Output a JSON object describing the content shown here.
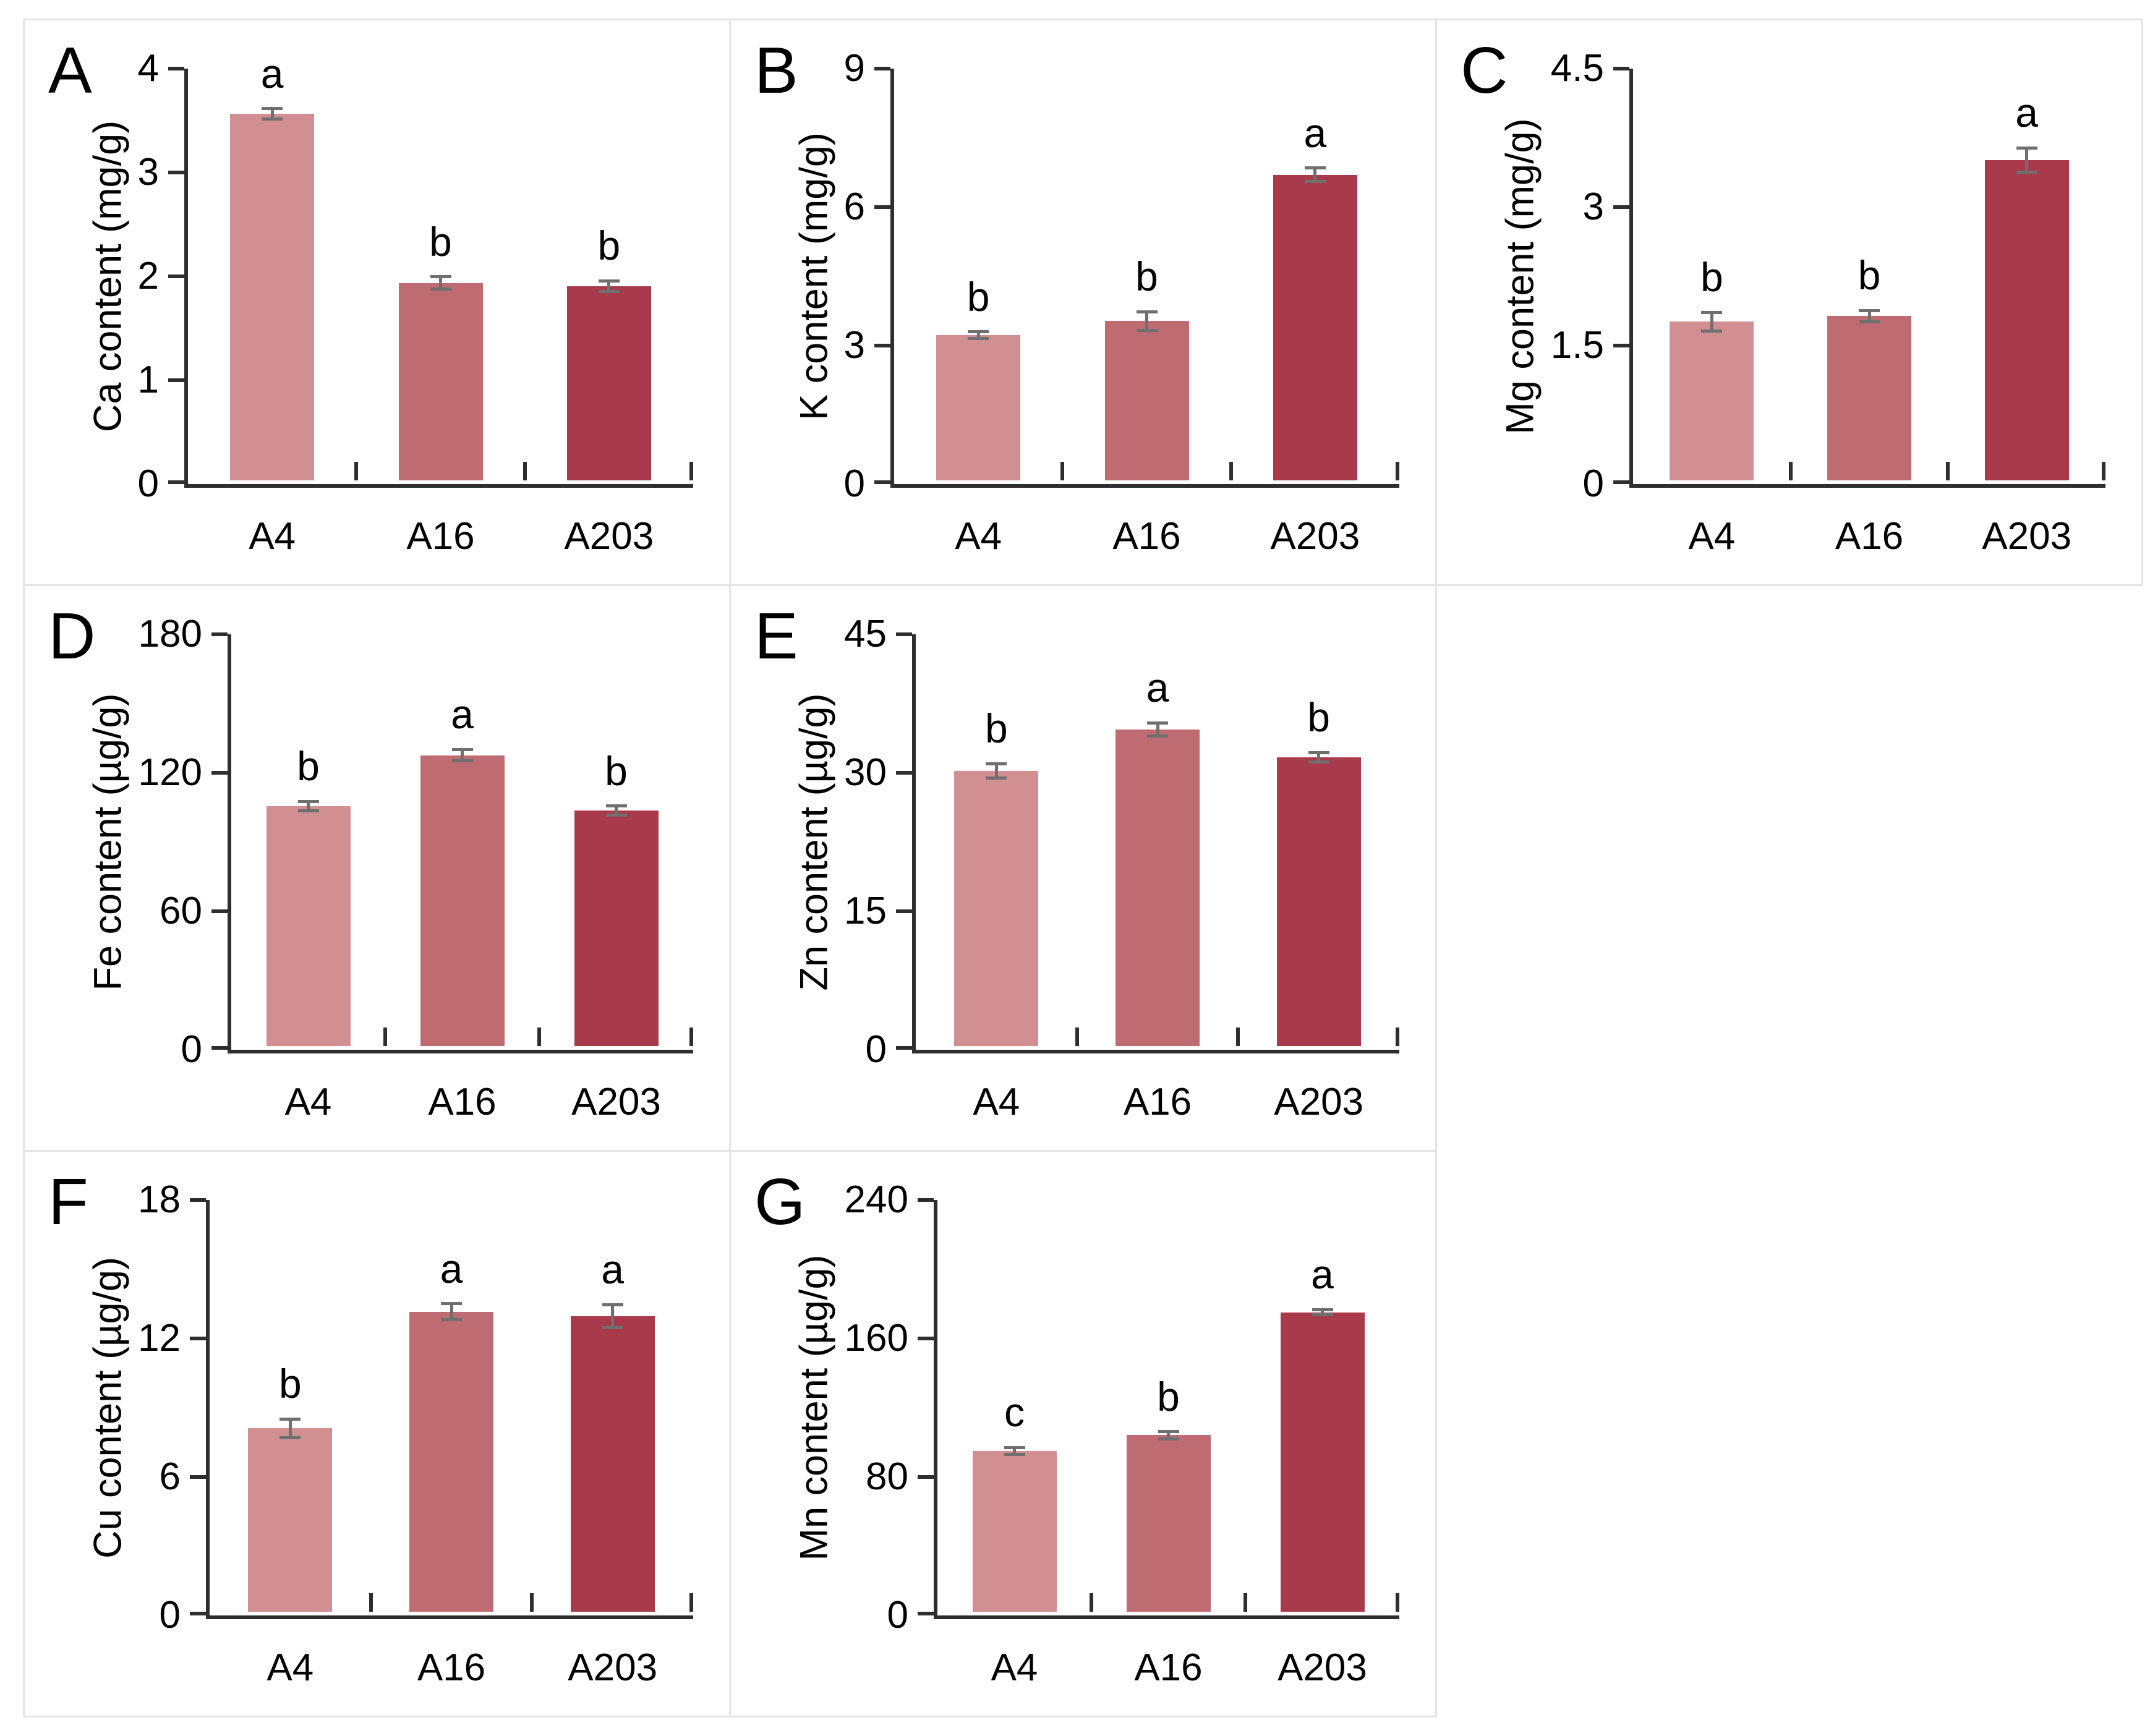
{
  "figure": {
    "title": "",
    "categories": [
      "A4",
      "A16",
      "A203"
    ],
    "bar_colors": {
      "A4": "#d28f92",
      "A16": "#be6b72",
      "A203": "#a83a4c"
    },
    "error_bar_color": "#6f6f6f",
    "axis_color": "#2e2e2e",
    "panel_border_color": "#e4e4e4",
    "background_color": "#ffffff"
  },
  "chart_data": [
    {
      "panel": "A",
      "type": "bar",
      "ylabel": "Ca content (mg/g)",
      "categories": [
        "A4",
        "A16",
        "A203"
      ],
      "values": [
        3.53,
        1.9,
        1.87
      ],
      "errors": [
        0.05,
        0.06,
        0.05
      ],
      "sig_letters": [
        "a",
        "b",
        "b"
      ],
      "ylim": [
        0,
        4
      ],
      "yticks": [
        0,
        1,
        2,
        3,
        4
      ],
      "grid": false,
      "legend": "none"
    },
    {
      "panel": "B",
      "type": "bar",
      "ylabel": "K content (mg/g)",
      "categories": [
        "A4",
        "A16",
        "A203"
      ],
      "values": [
        3.15,
        3.45,
        6.62
      ],
      "errors": [
        0.07,
        0.2,
        0.15
      ],
      "sig_letters": [
        "b",
        "b",
        "a"
      ],
      "ylim": [
        0,
        9
      ],
      "yticks": [
        0,
        3,
        6,
        9
      ],
      "grid": false,
      "legend": "none"
    },
    {
      "panel": "C",
      "type": "bar",
      "ylabel": "Mg content (mg/g)",
      "categories": [
        "A4",
        "A16",
        "A203"
      ],
      "values": [
        1.72,
        1.78,
        3.47
      ],
      "errors": [
        0.1,
        0.06,
        0.13
      ],
      "sig_letters": [
        "b",
        "b",
        "a"
      ],
      "ylim": [
        0,
        4.5
      ],
      "yticks": [
        0,
        1.5,
        3,
        4.5
      ],
      "grid": false,
      "legend": "none"
    },
    {
      "panel": "D",
      "type": "bar",
      "ylabel": "Fe content (µg/g)",
      "categories": [
        "A4",
        "A16",
        "A203"
      ],
      "values": [
        104,
        126,
        102
      ],
      "errors": [
        2,
        2.5,
        2
      ],
      "sig_letters": [
        "b",
        "a",
        "b"
      ],
      "ylim": [
        0,
        180
      ],
      "yticks": [
        0,
        60,
        120,
        180
      ],
      "grid": false,
      "legend": "none"
    },
    {
      "panel": "E",
      "type": "bar",
      "ylabel": "Zn content (µg/g)",
      "categories": [
        "A4",
        "A16",
        "A203"
      ],
      "values": [
        29.8,
        34.3,
        31.3
      ],
      "errors": [
        0.8,
        0.7,
        0.5
      ],
      "sig_letters": [
        "b",
        "a",
        "b"
      ],
      "ylim": [
        0,
        45
      ],
      "yticks": [
        0,
        15,
        30,
        45
      ],
      "grid": false,
      "legend": "none"
    },
    {
      "panel": "F",
      "type": "bar",
      "ylabel": "Cu content (µg/g)",
      "categories": [
        "A4",
        "A16",
        "A203"
      ],
      "values": [
        7.95,
        13.0,
        12.8
      ],
      "errors": [
        0.4,
        0.35,
        0.5
      ],
      "sig_letters": [
        "b",
        "a",
        "a"
      ],
      "ylim": [
        0,
        18
      ],
      "yticks": [
        0,
        6,
        12,
        18
      ],
      "grid": false,
      "legend": "none"
    },
    {
      "panel": "G",
      "type": "bar",
      "ylabel": "Mn content (µg/g)",
      "categories": [
        "A4",
        "A16",
        "A203"
      ],
      "values": [
        93,
        102,
        173
      ],
      "errors": [
        2,
        2,
        1.5
      ],
      "sig_letters": [
        "c",
        "b",
        "a"
      ],
      "ylim": [
        0,
        240
      ],
      "yticks": [
        0,
        80,
        160,
        240
      ],
      "grid": false,
      "legend": "none"
    }
  ]
}
